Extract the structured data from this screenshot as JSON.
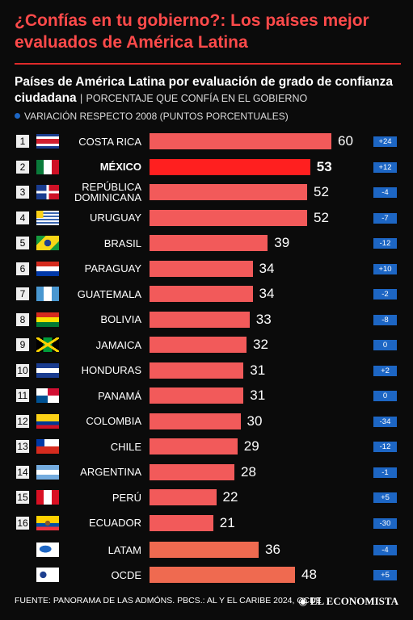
{
  "chart_data": {
    "type": "bar",
    "title": "¿Confías en tu gobierno?: Los países mejor evaluados de América Latina",
    "subtitle": "Países de América Latina por evaluación de grado de confianza ciudadana",
    "categories": [
      "COSTA RICA",
      "MÉXICO",
      "REPÚBLICA DOMINICANA",
      "URUGUAY",
      "BRASIL",
      "PARAGUAY",
      "GUATEMALA",
      "BOLIVIA",
      "JAMAICA",
      "HONDURAS",
      "PANAMÁ",
      "COLOMBIA",
      "CHILE",
      "ARGENTINA",
      "PERÚ",
      "ECUADOR",
      "LATAM",
      "OCDE"
    ],
    "ranks": [
      1,
      2,
      3,
      4,
      5,
      6,
      7,
      8,
      9,
      10,
      11,
      12,
      13,
      14,
      15,
      16,
      null,
      null
    ],
    "highlight_color": "#ff1f1f",
    "series": [
      {
        "name": "PORCENTAJE QUE CONFÍA EN EL GOBIERNO",
        "colors": [
          "#f25a5a",
          "#ff1f1f",
          "#f25a5a",
          "#f25a5a",
          "#f25a5a",
          "#f25a5a",
          "#f25a5a",
          "#f25a5a",
          "#f25a5a",
          "#f25a5a",
          "#f25a5a",
          "#f25a5a",
          "#f25a5a",
          "#f25a5a",
          "#f25a5a",
          "#f25a5a",
          "#ef6a50",
          "#ef6a50"
        ],
        "values": [
          60,
          53,
          52,
          52,
          39,
          34,
          34,
          33,
          32,
          31,
          31,
          30,
          29,
          28,
          22,
          21,
          36,
          48
        ]
      },
      {
        "name": "VARIACIÓN RESPECTO 2008 (PUNTOS PORCENTUALES)",
        "color": "#1d66c4",
        "values": [
          24,
          12,
          -4,
          -7,
          -12,
          10,
          -2,
          -8,
          0,
          2,
          0,
          -34,
          -12,
          -1,
          5,
          -30,
          -4,
          5
        ],
        "value_labels": [
          "+24",
          "+12",
          "-4",
          "-7",
          "-12",
          "+10",
          "-2",
          "-8",
          "0",
          "+2",
          "0",
          "-34",
          "-12",
          "-1",
          "+5",
          "-30",
          "-4",
          "+5"
        ]
      }
    ],
    "source": "FUENTE: PANORAMA DE LAS ADMÓNS. PBCS.: AL Y EL CARIBE 2024, OCDE",
    "brand": "EL ECONOMISTA"
  }
}
